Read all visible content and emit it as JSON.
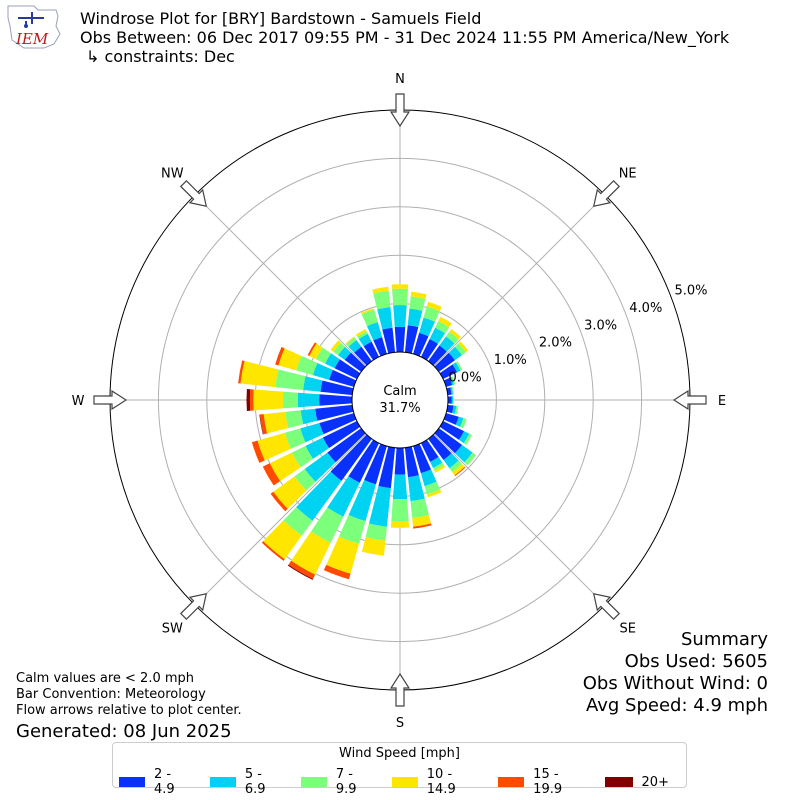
{
  "header": {
    "title_line1": "Windrose Plot for [BRY] Bardstown - Samuels Field",
    "title_line2": "Obs Between: 06 Dec 2017 09:55 PM - 31 Dec 2024 11:55 PM America/New_York",
    "title_line3": "↳ constraints: Dec",
    "logo_text": "IEM"
  },
  "summary": {
    "heading": "Summary",
    "obs_used": "Obs Used: 5605",
    "obs_without_wind": "Obs Without Wind: 0",
    "avg_speed": "Avg Speed: 4.9 mph"
  },
  "notes": {
    "calm_def": "Calm values are < 2.0 mph",
    "bar_convention": "Bar Convention: Meteorology",
    "flow_arrows": "Flow arrows relative to plot center.",
    "generated": "Generated: 08 Jun 2025"
  },
  "legend": {
    "title": "Wind Speed [mph]",
    "items": [
      {
        "label": "2 - 4.9",
        "color": "#0a31fb"
      },
      {
        "label": "5 - 6.9",
        "color": "#00d3f2"
      },
      {
        "label": "7 - 9.9",
        "color": "#7cff7a"
      },
      {
        "label": "10 - 14.9",
        "color": "#ffe600"
      },
      {
        "label": "15 - 19.9",
        "color": "#ff4a00"
      },
      {
        "label": "20+",
        "color": "#800000"
      }
    ]
  },
  "chart_data": {
    "type": "windrose",
    "calm": {
      "label": "Calm",
      "value": "31.7%"
    },
    "radial_ticks": [
      "0.0%",
      "1.0%",
      "2.0%",
      "3.0%",
      "4.0%",
      "5.0%"
    ],
    "radial_tick_values": [
      0,
      1,
      2,
      3,
      4,
      5
    ],
    "rmax": 5.0,
    "compass": [
      "N",
      "NE",
      "E",
      "SE",
      "S",
      "SW",
      "W",
      "NW"
    ],
    "bins": [
      "2 - 4.9",
      "5 - 6.9",
      "7 - 9.9",
      "10 - 14.9",
      "15 - 19.9",
      "20+"
    ],
    "directions_deg": [
      0,
      10,
      20,
      30,
      40,
      50,
      60,
      70,
      80,
      90,
      100,
      110,
      120,
      130,
      140,
      150,
      160,
      170,
      180,
      190,
      200,
      210,
      220,
      230,
      240,
      250,
      260,
      270,
      280,
      290,
      300,
      310,
      320,
      330,
      340,
      350
    ],
    "values": [
      [
        0.52,
        0.45,
        0.34,
        0.09,
        0.0,
        0.0
      ],
      [
        0.56,
        0.35,
        0.25,
        0.1,
        0.0,
        0.0
      ],
      [
        0.45,
        0.33,
        0.24,
        0.1,
        0.0,
        0.0
      ],
      [
        0.41,
        0.26,
        0.15,
        0.1,
        0.0,
        0.0
      ],
      [
        0.4,
        0.23,
        0.12,
        0.07,
        0.0,
        0.0
      ],
      [
        0.41,
        0.18,
        0.1,
        0.06,
        0.0,
        0.0
      ],
      [
        0.32,
        0.08,
        0.04,
        0.0,
        0.0,
        0.0
      ],
      [
        0.13,
        0.04,
        0.03,
        0.0,
        0.0,
        0.0
      ],
      [
        0.08,
        0.03,
        0.02,
        0.0,
        0.0,
        0.0
      ],
      [
        0.08,
        0.03,
        0.01,
        0.0,
        0.0,
        0.0
      ],
      [
        0.12,
        0.06,
        0.04,
        0.0,
        0.0,
        0.0
      ],
      [
        0.27,
        0.1,
        0.07,
        0.0,
        0.0,
        0.0
      ],
      [
        0.48,
        0.12,
        0.06,
        0.0,
        0.0,
        0.0
      ],
      [
        0.59,
        0.27,
        0.09,
        0.0,
        0.0,
        0.0
      ],
      [
        0.54,
        0.21,
        0.1,
        0.08,
        0.02,
        0.0
      ],
      [
        0.43,
        0.14,
        0.06,
        0.05,
        0.0,
        0.0
      ],
      [
        0.58,
        0.28,
        0.18,
        0.06,
        0.0,
        0.0
      ],
      [
        0.61,
        0.5,
        0.35,
        0.18,
        0.04,
        0.0
      ],
      [
        0.55,
        0.51,
        0.46,
        0.13,
        0.0,
        0.0
      ],
      [
        0.84,
        0.8,
        0.29,
        0.31,
        0.0,
        0.0
      ],
      [
        0.82,
        0.79,
        0.49,
        0.64,
        0.12,
        0.0
      ],
      [
        0.91,
        0.78,
        0.6,
        0.73,
        0.1,
        0.02
      ],
      [
        1.07,
        1.02,
        0.38,
        0.6,
        0.04,
        0.0
      ],
      [
        0.86,
        0.58,
        0.26,
        0.54,
        0.07,
        0.0
      ],
      [
        0.78,
        0.4,
        0.31,
        0.51,
        0.16,
        0.0
      ],
      [
        0.74,
        0.41,
        0.33,
        0.59,
        0.12,
        0.0
      ],
      [
        0.77,
        0.3,
        0.32,
        0.45,
        0.08,
        0.01
      ],
      [
        0.68,
        0.44,
        0.31,
        0.61,
        0.07,
        0.07
      ],
      [
        0.66,
        0.36,
        0.58,
        0.72,
        0.05,
        0.0
      ],
      [
        0.53,
        0.35,
        0.36,
        0.38,
        0.07,
        0.0
      ],
      [
        0.51,
        0.22,
        0.21,
        0.15,
        0.04,
        0.0
      ],
      [
        0.42,
        0.17,
        0.12,
        0.07,
        0.0,
        0.0
      ],
      [
        0.37,
        0.17,
        0.07,
        0.02,
        0.0,
        0.0
      ],
      [
        0.35,
        0.18,
        0.06,
        0.05,
        0.0,
        0.0
      ],
      [
        0.36,
        0.32,
        0.27,
        0.03,
        0.0,
        0.0
      ],
      [
        0.51,
        0.43,
        0.34,
        0.08,
        0.0,
        0.0
      ]
    ]
  }
}
